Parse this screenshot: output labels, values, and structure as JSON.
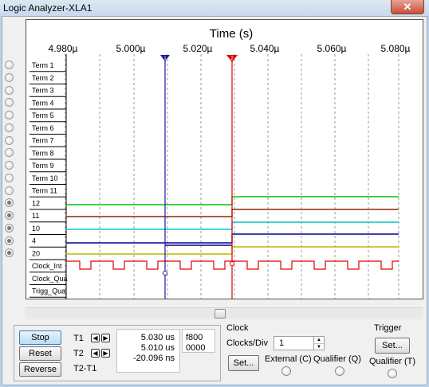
{
  "window": {
    "title": "Logic Analyzer-XLA1",
    "close_glyph": "✕"
  },
  "scope": {
    "time_label": "Time (s)",
    "ticks": [
      "4.980µ",
      "5.000µ",
      "5.020µ",
      "5.040µ",
      "5.060µ",
      "5.080µ"
    ],
    "channels": [
      "Term 1",
      "Term 2",
      "Term 3",
      "Term 4",
      "Term 5",
      "Term 6",
      "Term 7",
      "Term 8",
      "Term 9",
      "Term 10",
      "Term 11",
      "12",
      "11",
      "10",
      "4",
      "20",
      "Clock_Int",
      "Clock_Qua",
      "Trigg_Qua"
    ],
    "cursor1_label": "1",
    "cursor2_label": "2",
    "leds_on": [
      false,
      false,
      false,
      false,
      false,
      false,
      false,
      false,
      false,
      false,
      false,
      true,
      true,
      true,
      true,
      true
    ],
    "trace_colors": {
      "12": "#00c000",
      "11": "#8b2a00",
      "10": "#00c8c8",
      "4": "#00008b",
      "20": "#b8b800",
      "clock": "#e00000",
      "cursor1": "#1a1aa0",
      "cursor2": "#e00000"
    }
  },
  "controls": {
    "stop": "Stop",
    "reset": "Reset",
    "reverse": "Reverse",
    "t1": "T1",
    "t2": "T2",
    "t2t1": "T2-T1",
    "t1_value": "5.030 us",
    "t2_value": "5.010 us",
    "diff_value": "-20.096 ns",
    "hex1": "f800",
    "hex2": "0000"
  },
  "clock": {
    "title": "Clock",
    "clocks_div_label": "Clocks/Div",
    "clocks_div_value": "1",
    "set": "Set...",
    "external": "External (C)",
    "qualifier": "Qualifier (Q)"
  },
  "trigger": {
    "title": "Trigger",
    "set": "Set...",
    "qualifier": "Qualifier (T)"
  }
}
